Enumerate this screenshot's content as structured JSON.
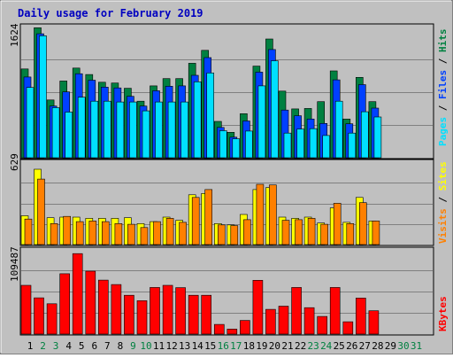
{
  "chart_data": [
    {
      "type": "bar",
      "title": "Daily usage for February 2019",
      "categories": [
        "1",
        "2",
        "3",
        "4",
        "5",
        "6",
        "7",
        "8",
        "9",
        "10",
        "11",
        "12",
        "13",
        "14",
        "15",
        "16",
        "17",
        "18",
        "19",
        "20",
        "21",
        "22",
        "23",
        "24",
        "25",
        "26",
        "27",
        "28",
        "29",
        "30",
        "31"
      ],
      "weekend_days": [
        "2",
        "3",
        "9",
        "10",
        "16",
        "17",
        "23",
        "24",
        "30",
        "31"
      ],
      "y_max_label": "1624",
      "ylim": [
        0,
        1624
      ],
      "series": [
        {
          "name": "Hits",
          "color": "#008040",
          "values": [
            1100,
            1610,
            715,
            950,
            1110,
            1030,
            935,
            925,
            860,
            700,
            890,
            980,
            980,
            1170,
            1330,
            450,
            315,
            545,
            1135,
            1470,
            825,
            605,
            610,
            695,
            1075,
            480,
            995,
            695,
            0,
            0,
            0
          ]
        },
        {
          "name": "Files",
          "color": "#0040ff",
          "values": [
            1000,
            1535,
            640,
            815,
            1040,
            960,
            875,
            865,
            760,
            640,
            830,
            885,
            890,
            1020,
            1240,
            375,
            255,
            455,
            1060,
            1340,
            590,
            520,
            480,
            425,
            965,
            420,
            905,
            615,
            0,
            0,
            0
          ]
        },
        {
          "name": "Pages",
          "color": "#00e0ff",
          "values": [
            870,
            1510,
            620,
            565,
            750,
            700,
            700,
            690,
            690,
            580,
            690,
            690,
            690,
            940,
            1050,
            335,
            235,
            330,
            890,
            1200,
            305,
            355,
            360,
            275,
            700,
            305,
            570,
            505,
            0,
            0,
            0
          ]
        }
      ]
    },
    {
      "type": "bar",
      "categories": [
        "1",
        "2",
        "3",
        "4",
        "5",
        "6",
        "7",
        "8",
        "9",
        "10",
        "11",
        "12",
        "13",
        "14",
        "15",
        "16",
        "17",
        "18",
        "19",
        "20",
        "21",
        "22",
        "23",
        "24",
        "25",
        "26",
        "27",
        "28",
        "29",
        "30",
        "31"
      ],
      "y_max_label": "629",
      "ylim": [
        0,
        629
      ],
      "series": [
        {
          "name": "Sites",
          "color": "#ffff00",
          "values": [
            220,
            575,
            205,
            210,
            210,
            200,
            200,
            200,
            205,
            160,
            175,
            210,
            185,
            380,
            390,
            160,
            150,
            230,
            420,
            435,
            210,
            200,
            210,
            165,
            280,
            170,
            360,
            180,
            0,
            0,
            0
          ]
        },
        {
          "name": "Visits",
          "color": "#ff8000",
          "values": [
            195,
            500,
            160,
            215,
            175,
            180,
            175,
            160,
            155,
            130,
            175,
            200,
            170,
            360,
            420,
            150,
            145,
            190,
            460,
            455,
            185,
            190,
            200,
            155,
            315,
            160,
            320,
            180,
            0,
            0,
            0
          ]
        }
      ]
    },
    {
      "type": "bar",
      "categories": [
        "1",
        "2",
        "3",
        "4",
        "5",
        "6",
        "7",
        "8",
        "9",
        "10",
        "11",
        "12",
        "13",
        "14",
        "15",
        "16",
        "17",
        "18",
        "19",
        "20",
        "21",
        "22",
        "23",
        "24",
        "25",
        "26",
        "27",
        "28",
        "29",
        "30",
        "31"
      ],
      "y_max_label": "109487",
      "ylim": [
        0,
        109487
      ],
      "series": [
        {
          "name": "KBytes",
          "color": "#ff0000",
          "values": [
            62700,
            46700,
            39000,
            77700,
            103500,
            81000,
            69500,
            63800,
            50000,
            43000,
            60000,
            62700,
            59800,
            50000,
            50000,
            12400,
            6400,
            17600,
            69200,
            31800,
            35900,
            60000,
            34000,
            22700,
            60000,
            15900,
            46400,
            30000,
            0,
            0,
            0
          ]
        }
      ]
    }
  ]
}
